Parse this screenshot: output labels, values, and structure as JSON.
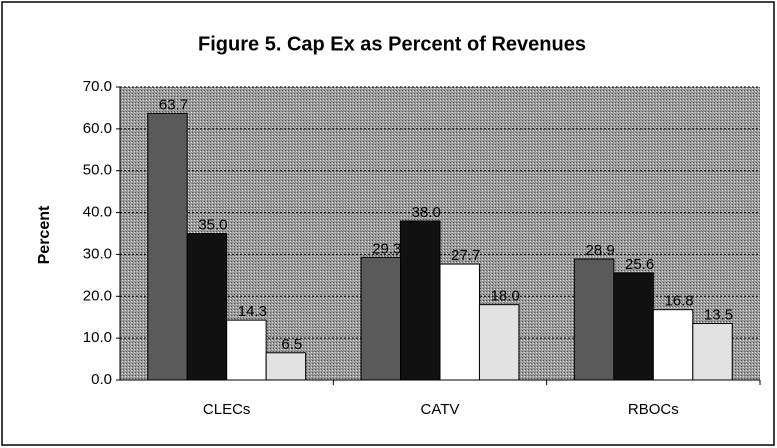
{
  "chart_data": {
    "type": "bar",
    "title": "Figure 5.  Cap Ex as Percent of Revenues",
    "y_label": "Percent",
    "categories": [
      "CLECs",
      "CATV",
      "RBOCs"
    ],
    "series": [
      {
        "color": "#5a5a5a",
        "values": [
          63.7,
          29.3,
          28.9
        ],
        "value_labels": [
          "63.7",
          "29.3",
          "28.9"
        ]
      },
      {
        "color": "#111111",
        "values": [
          35.0,
          38.0,
          25.6
        ],
        "value_labels": [
          "35.0",
          "38.0",
          "25.6"
        ]
      },
      {
        "color": "#ffffff",
        "values": [
          14.3,
          27.7,
          16.8
        ],
        "value_labels": [
          "14.3",
          "27.7",
          "16.8"
        ]
      },
      {
        "color": "#e2e2e2",
        "values": [
          6.5,
          18.0,
          13.5
        ],
        "value_labels": [
          "6.5",
          "18.0",
          "13.5"
        ]
      }
    ],
    "ylim": [
      0,
      70
    ],
    "yticks": [
      {
        "value": 0,
        "label": "0.0"
      },
      {
        "value": 10,
        "label": "10.0"
      },
      {
        "value": 20,
        "label": "20.0"
      },
      {
        "value": 30,
        "label": "30.0"
      },
      {
        "value": 40,
        "label": "40.0"
      },
      {
        "value": 50,
        "label": "50.0"
      },
      {
        "value": 60,
        "label": "60.0"
      },
      {
        "value": 70,
        "label": "70.0"
      }
    ],
    "grid": true
  }
}
